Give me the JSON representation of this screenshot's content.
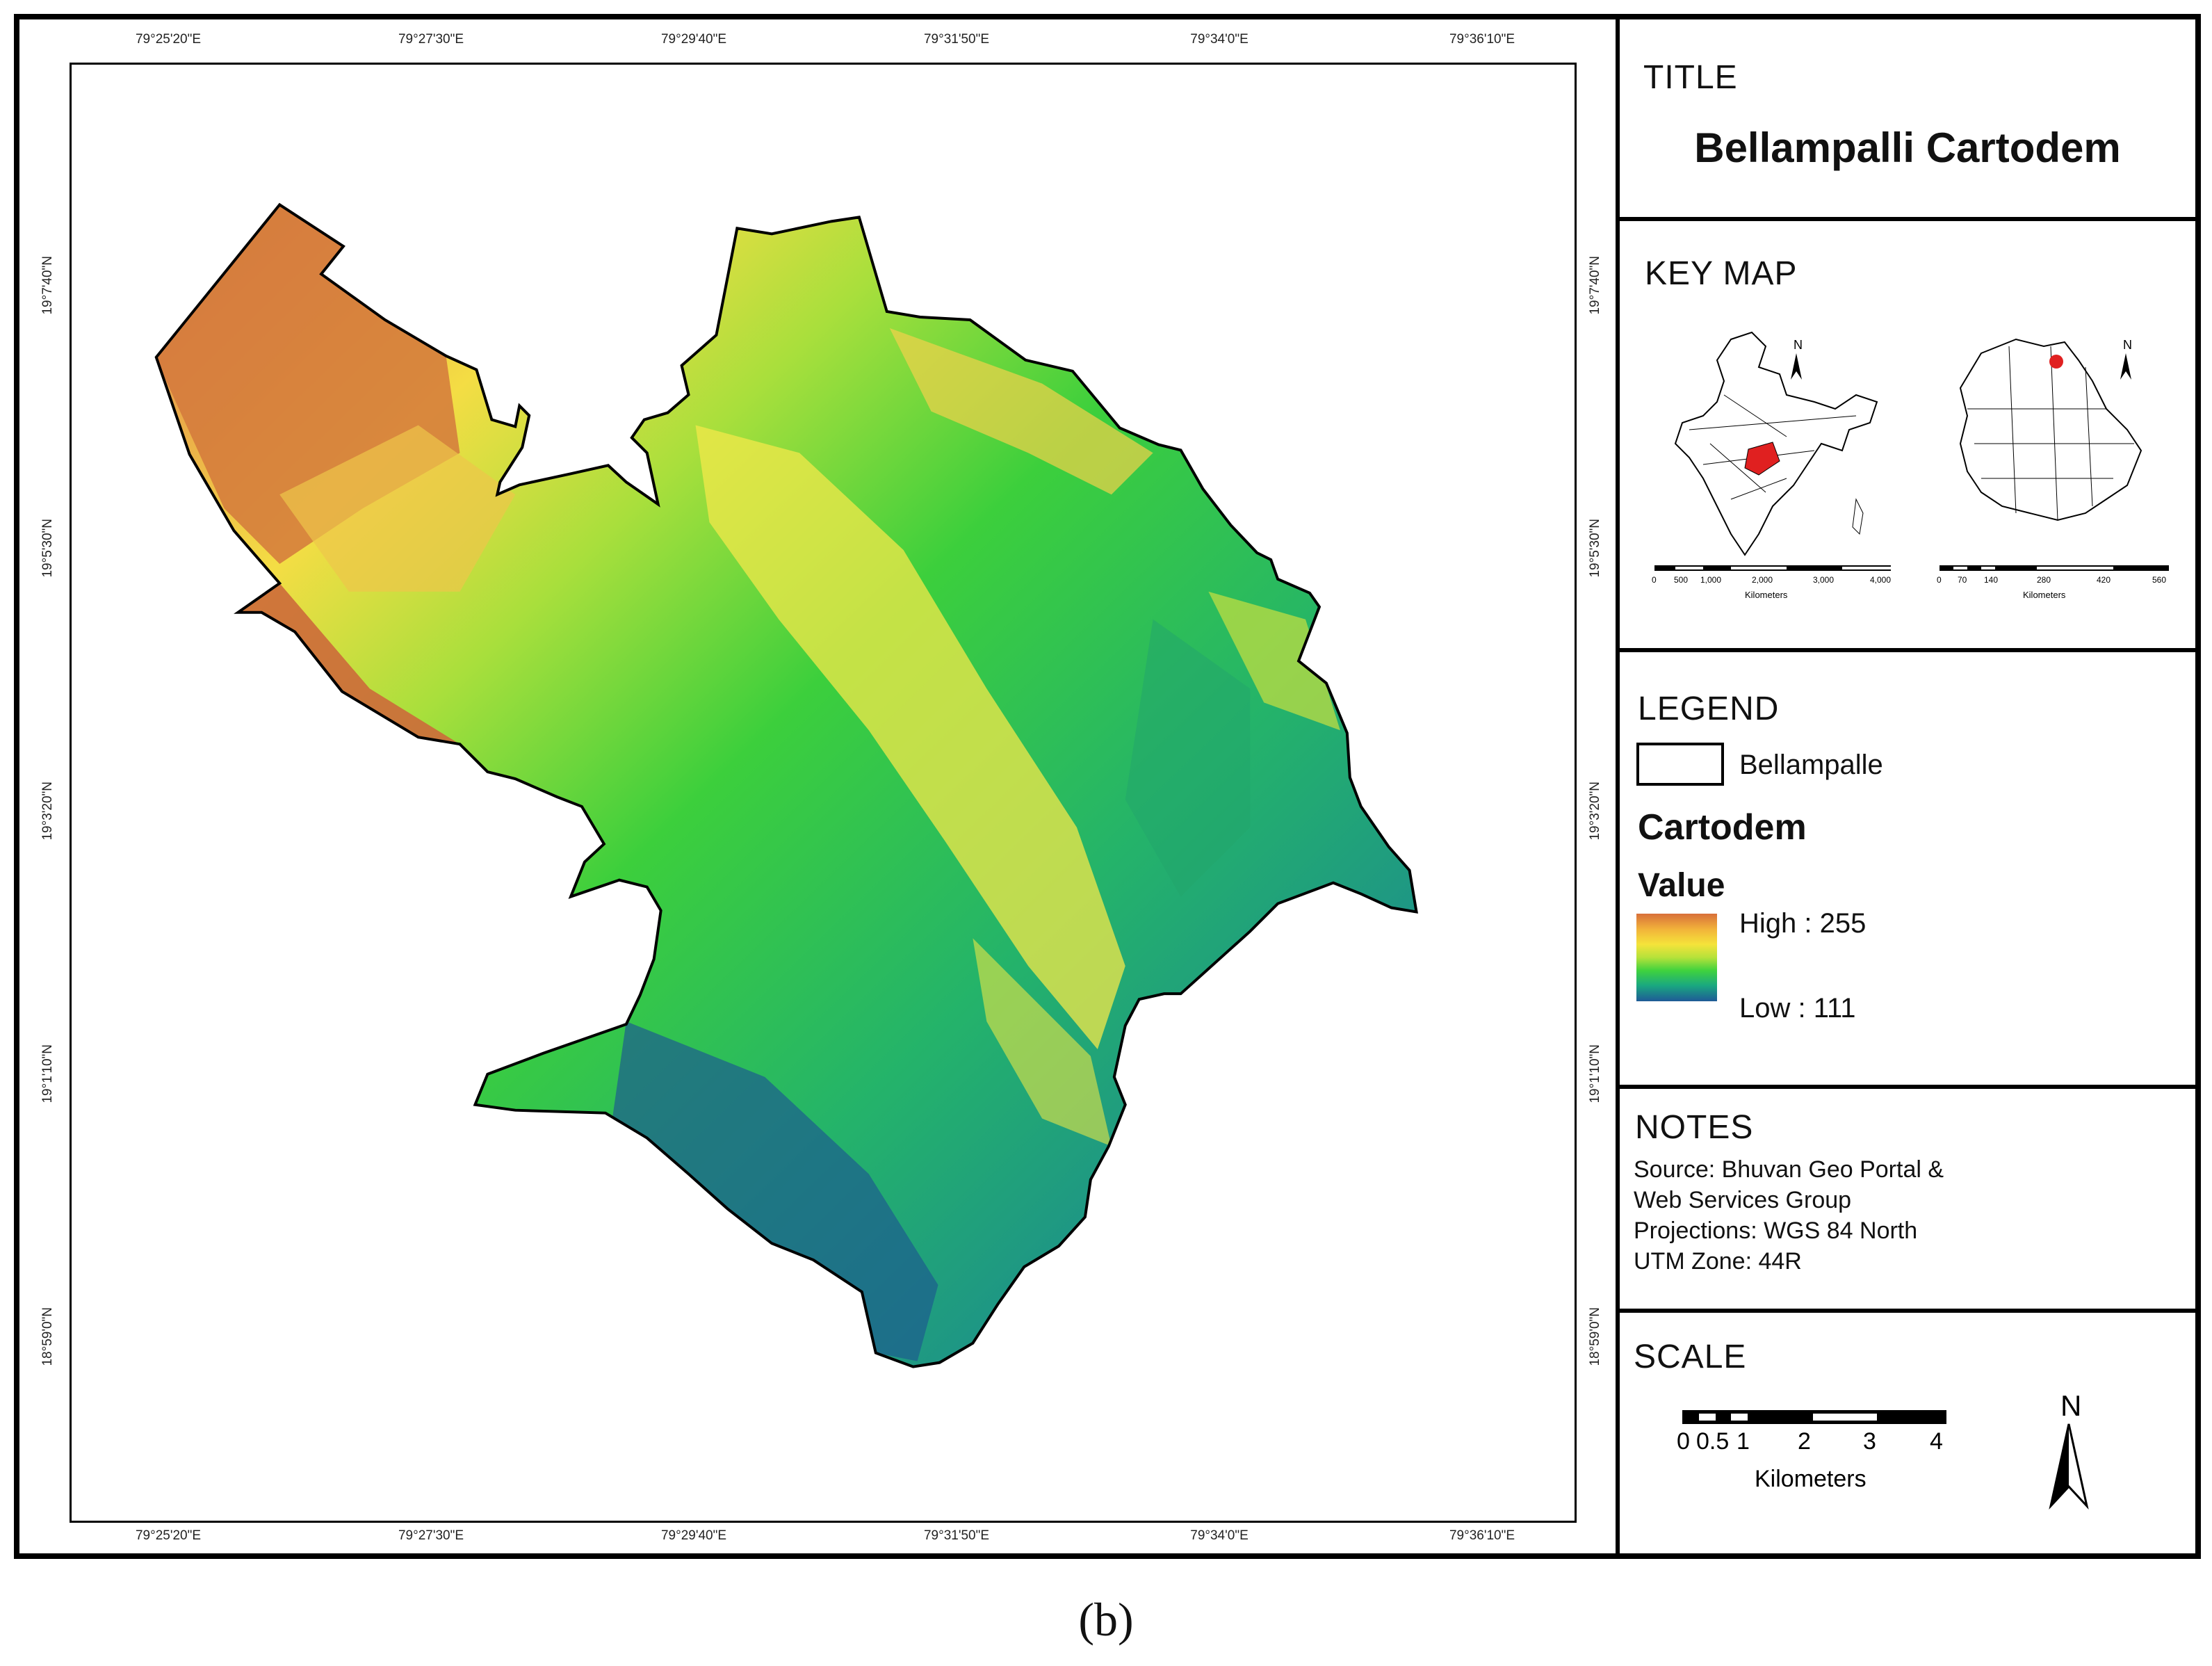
{
  "map": {
    "top_ticks": [
      "79°25'20\"E",
      "79°27'30\"E",
      "79°29'40\"E",
      "79°31'50\"E",
      "79°34'0\"E",
      "79°36'10\"E"
    ],
    "bottom_ticks": [
      "79°25'20\"E",
      "79°27'30\"E",
      "79°29'40\"E",
      "79°31'50\"E",
      "79°34'0\"E",
      "79°36'10\"E"
    ],
    "left_ticks": [
      "19°7'40\"N",
      "19°5'30\"N",
      "19°3'20\"N",
      "19°1'10\"N",
      "18°59'0\"N"
    ],
    "right_ticks": [
      "19°7'40\"N",
      "19°5'30\"N",
      "19°3'20\"N",
      "19°1'10\"N",
      "18°59'0\"N"
    ]
  },
  "title_panel": {
    "heading": "TITLE",
    "title": "Bellampalli Cartodem"
  },
  "keymap_panel": {
    "heading": "KEY MAP",
    "north": "N",
    "india_scale_labels": [
      "0",
      "500",
      "1,000",
      "2,000",
      "3,000",
      "4,000"
    ],
    "india_scale_unit": "Kilometers",
    "state_scale_labels": [
      "0",
      "70",
      "140",
      "280",
      "420",
      "560"
    ],
    "state_scale_unit": "Kilometers"
  },
  "legend_panel": {
    "heading": "LEGEND",
    "boundary_label": "Bellampalle",
    "layer_name": "Cartodem",
    "value_label": "Value",
    "high_label": "High : 255",
    "low_label": "Low : 111",
    "colors": {
      "high": "#d8703a",
      "mid": "#3fd23e",
      "low": "#1e5a96"
    }
  },
  "notes_panel": {
    "heading": "NOTES",
    "lines": [
      "Source: Bhuvan Geo Portal &",
      "Web Services Group",
      "Projections: WGS 84 North",
      "UTM Zone: 44R"
    ]
  },
  "scale_panel": {
    "heading": "SCALE",
    "labels": [
      "0",
      "0.5",
      "1",
      "2",
      "3",
      "4"
    ],
    "unit": "Kilometers",
    "north": "N"
  },
  "caption": "(b)"
}
